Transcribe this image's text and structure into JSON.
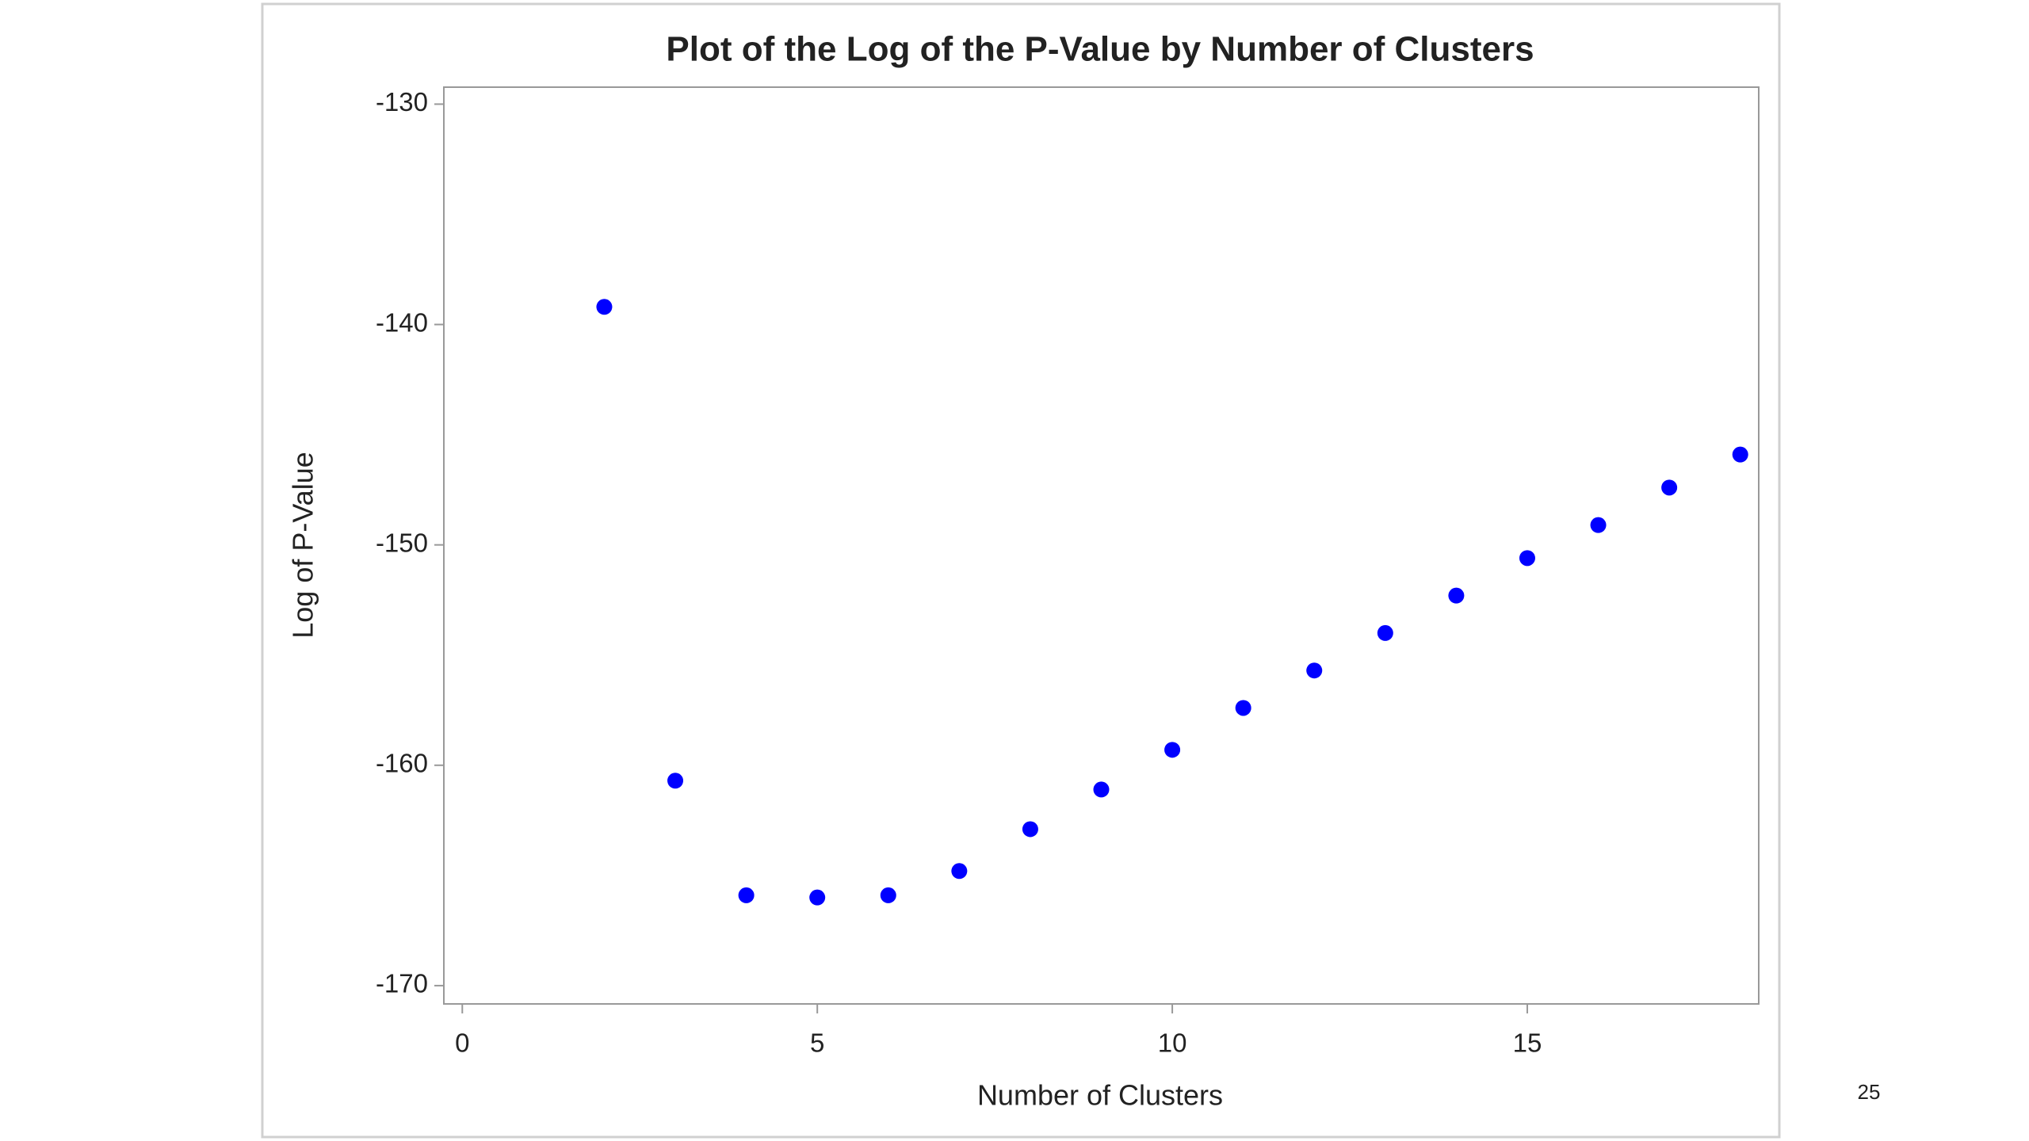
{
  "chart_data": {
    "type": "scatter",
    "title": "Plot of the Log of the P-Value by Number of Clusters",
    "x_label": "Number of Clusters",
    "y_label": "Log of P-Value",
    "x": [
      2,
      3,
      4,
      5,
      6,
      7,
      8,
      9,
      10,
      11,
      12,
      13,
      14,
      15,
      16,
      17,
      18
    ],
    "values": [
      -139.2,
      -160.7,
      -165.9,
      -166.0,
      -165.9,
      -164.8,
      -162.9,
      -161.1,
      -159.3,
      -157.4,
      -155.7,
      -154.0,
      -152.3,
      -150.6,
      -149.1,
      -147.4,
      -145.9
    ],
    "color": "#0000ff",
    "xlim": [
      -0.26,
      18.26
    ],
    "xticks": [
      0,
      5,
      10,
      15
    ],
    "ylim": [
      -170.83,
      -129.23
    ],
    "yticks": [
      -170,
      -160,
      -150,
      -140,
      -130
    ]
  },
  "page_number": "25"
}
